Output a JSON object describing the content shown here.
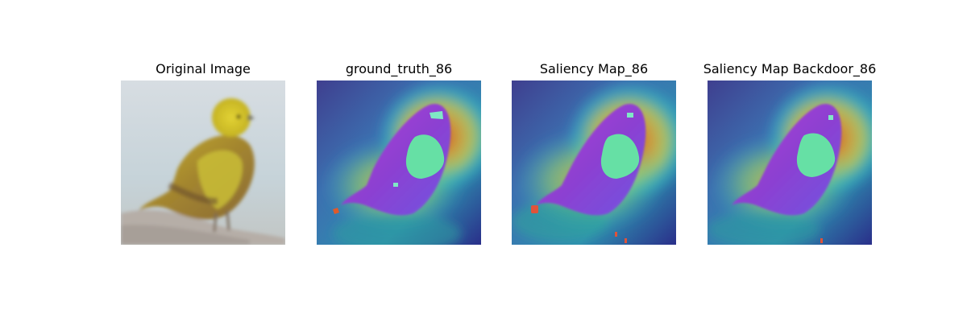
{
  "figure": {
    "panels": [
      {
        "title": "Original Image"
      },
      {
        "title": "ground_truth_86"
      },
      {
        "title": "Saliency Map_86"
      },
      {
        "title": "Saliency Map Backdoor_86"
      }
    ]
  }
}
